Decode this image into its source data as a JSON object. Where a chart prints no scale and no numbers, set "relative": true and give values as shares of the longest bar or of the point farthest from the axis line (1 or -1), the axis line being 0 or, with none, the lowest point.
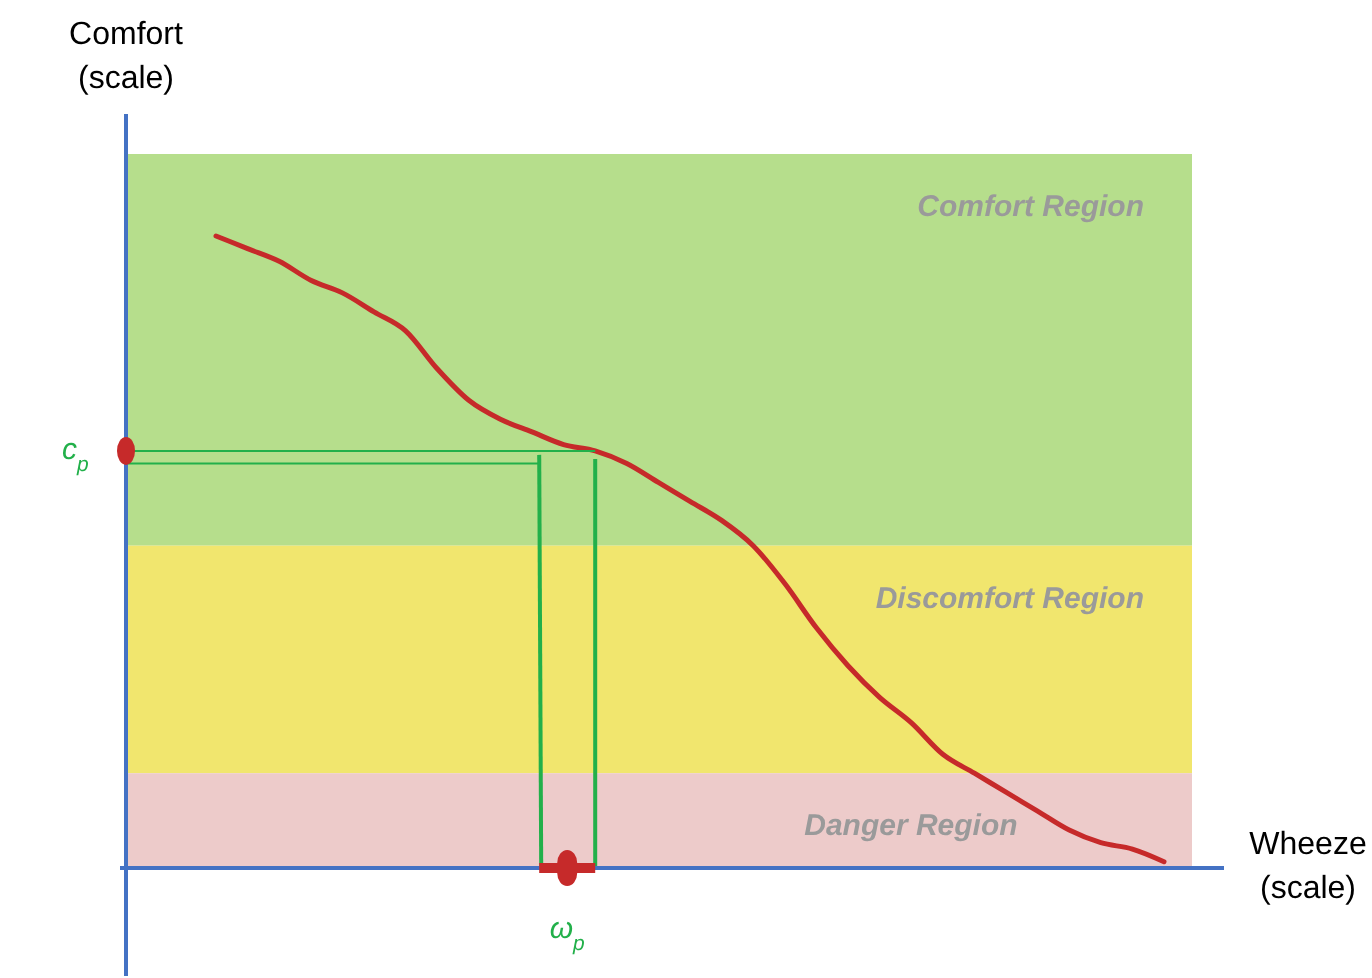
{
  "chart_data": {
    "type": "line",
    "relative": true,
    "xlabel": "Wheeze\n(scale)",
    "ylabel": "Comfort\n(scale)",
    "categories": [
      null,
      null,
      null,
      null,
      null,
      null,
      null,
      null,
      null,
      null,
      null,
      null,
      null,
      null,
      null,
      null,
      null,
      null,
      null,
      null,
      null,
      null,
      null,
      null,
      null,
      null,
      null,
      null,
      null,
      null,
      null
    ],
    "series": [
      {
        "color": "#c62a2a",
        "values": [
          1,
          0.98,
          0.96,
          0.93,
          0.91,
          0.88,
          0.85,
          0.79,
          0.74,
          0.71,
          0.69,
          0.67,
          0.66,
          0.64,
          0.61,
          0.58,
          0.55,
          0.51,
          0.45,
          0.38,
          0.32,
          0.27,
          0.23,
          0.18,
          0.15,
          0.12,
          0.09,
          0.06,
          0.04,
          0.03,
          0.01
        ]
      }
    ],
    "bands": [
      {
        "axis": "y",
        "from": 0.51,
        "to": 1.13,
        "label": "Comfort Region",
        "color": "#b6de8c"
      },
      {
        "axis": "y",
        "from": 0.15,
        "to": 0.51,
        "label": "Discomfort Region",
        "color": "#f1e66e"
      },
      {
        "axis": "y",
        "from": 0,
        "to": 0.15,
        "label": "Danger Region",
        "color": "#edcbca"
      }
    ],
    "ref_lines": [
      {
        "axis": "y",
        "value": 0.66,
        "label": "c$_{p}$",
        "color": "#22b04a"
      },
      {
        "axis": "y",
        "value": 0.64,
        "color": "#22b04a"
      }
    ],
    "annotations": [
      "ω$_{p}$"
    ],
    "marker": "none",
    "line_style": "solid"
  }
}
